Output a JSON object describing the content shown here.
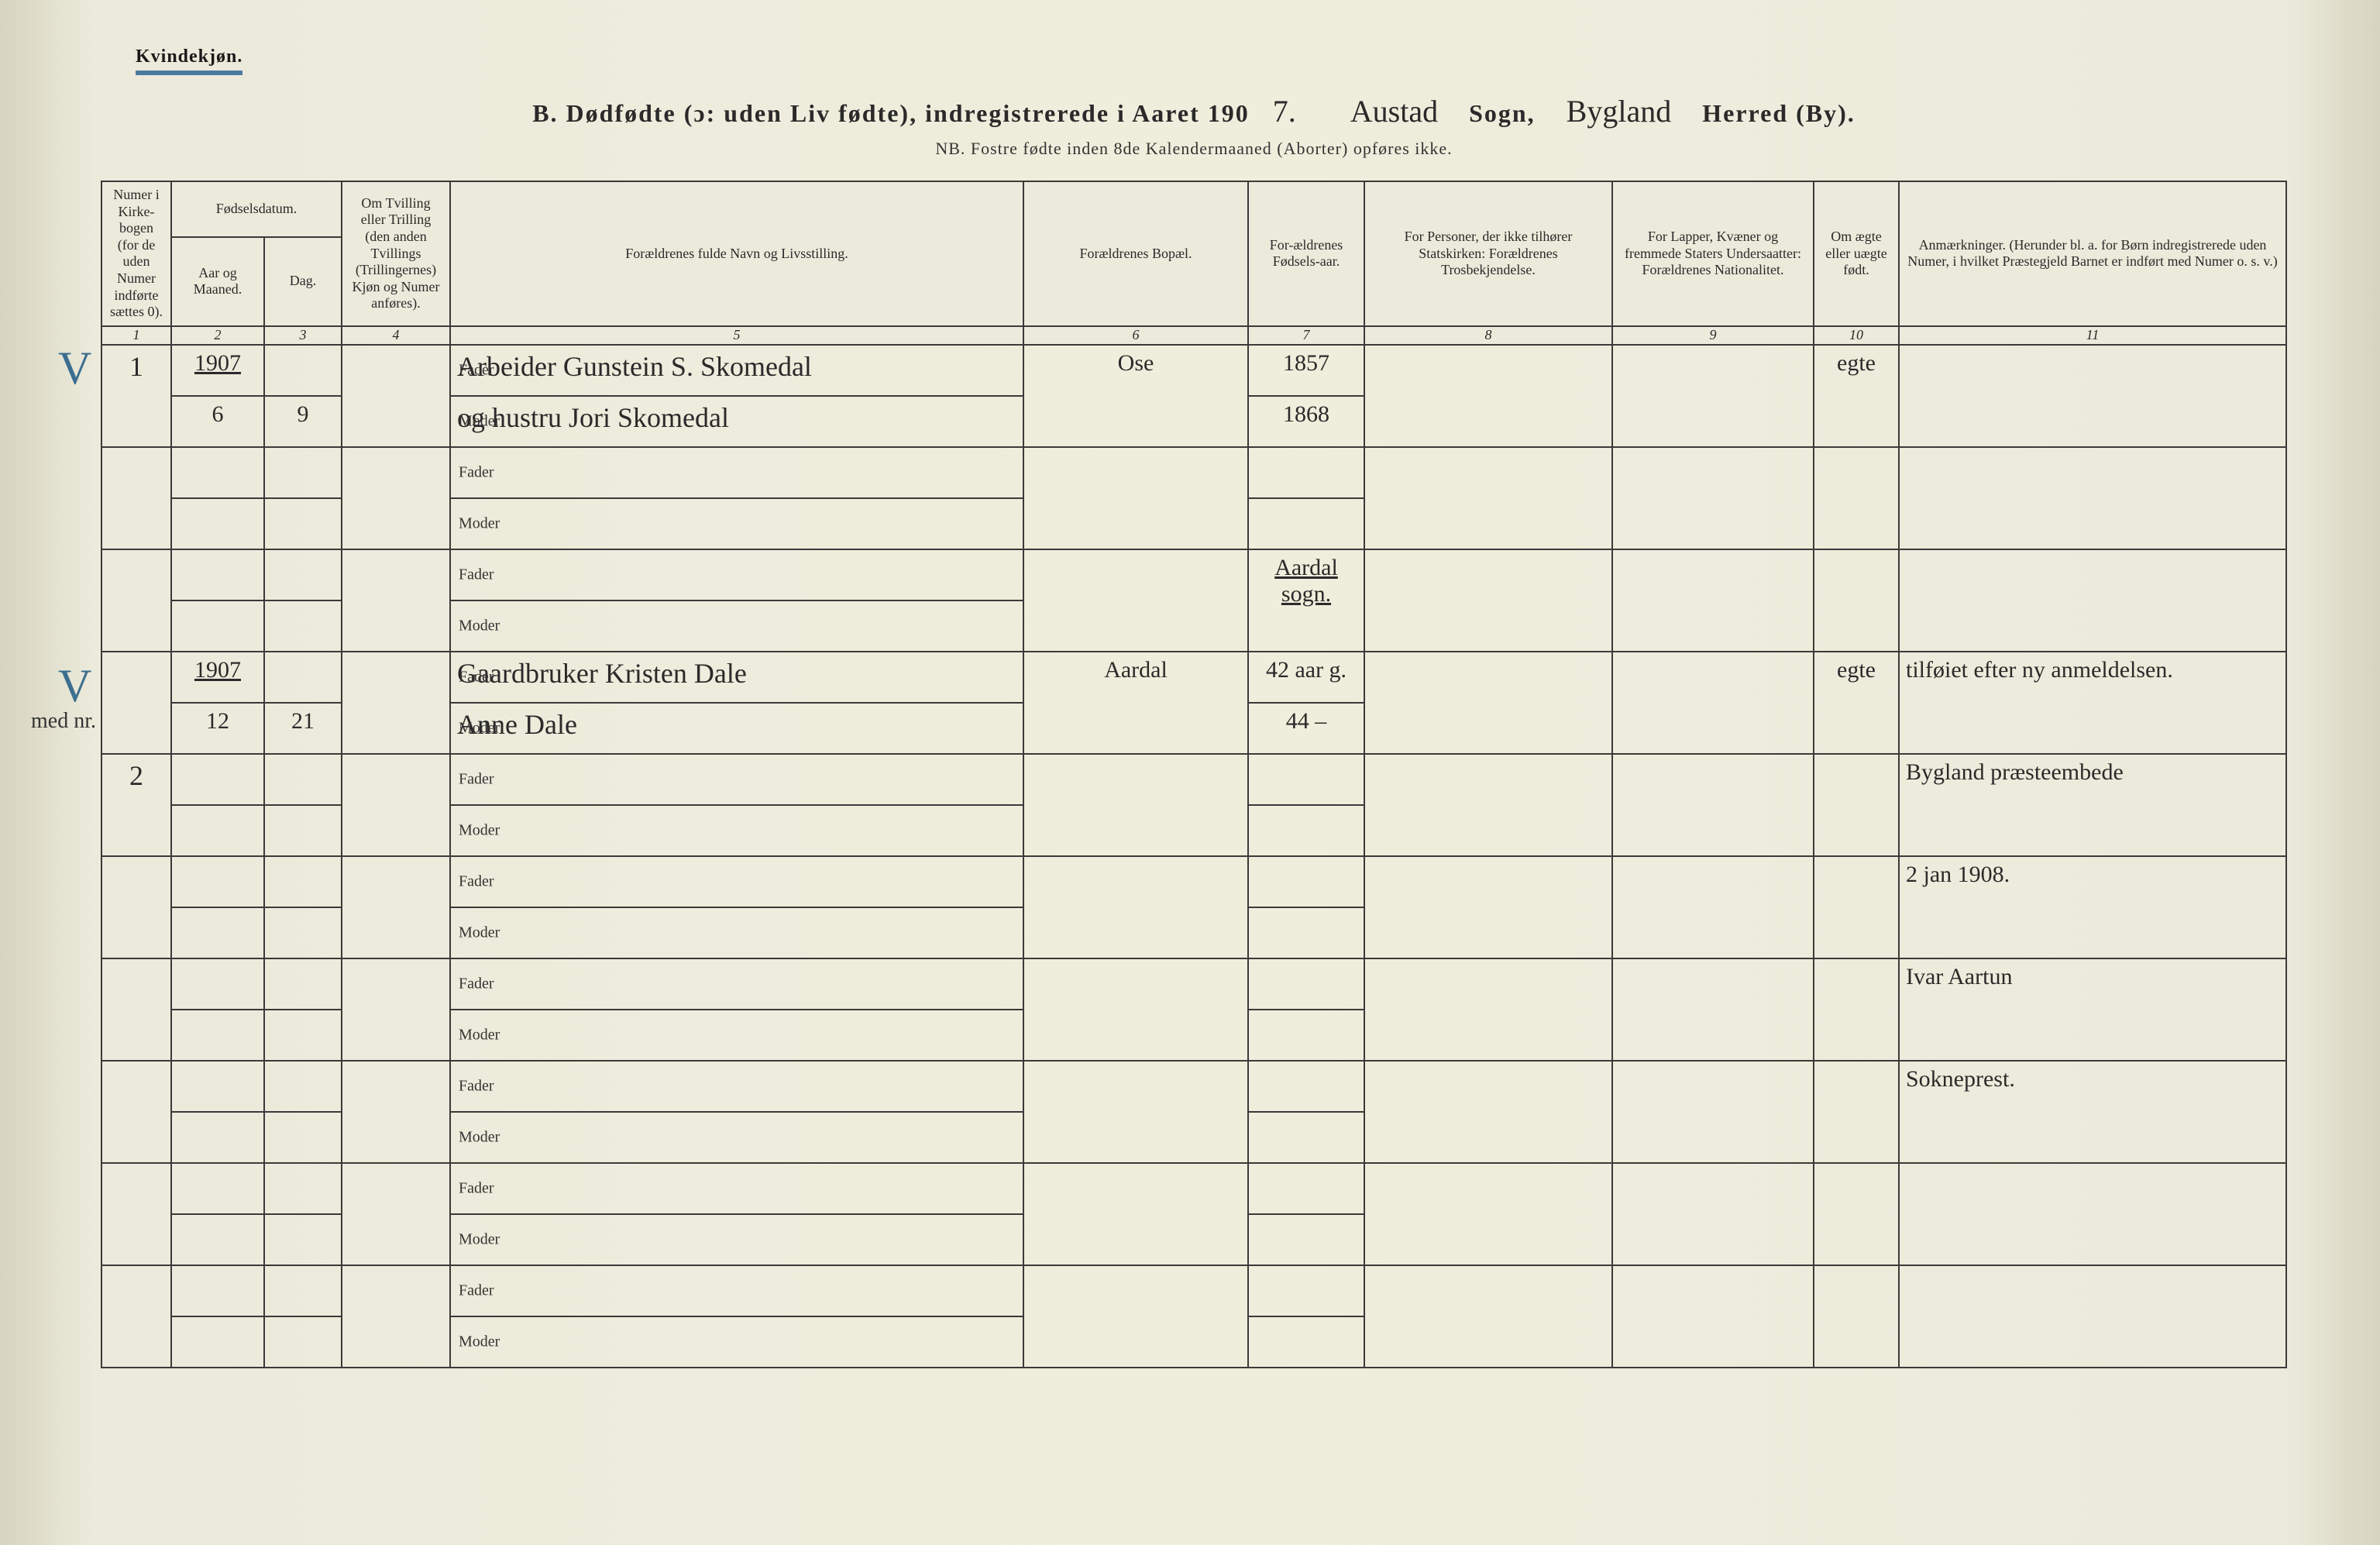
{
  "page": {
    "gender_header": "Kvindekjøn.",
    "title_prefix": "B.  Dødfødte (ɔ: uden Liv fødte), indregistrerede i Aaret 190",
    "year_digit": "7.",
    "sogn_hand": "Austad",
    "sogn_label": "Sogn,",
    "herred_hand": "Bygland",
    "herred_label": "Herred (By).",
    "nb_line": "NB.  Fostre fødte inden 8de Kalendermaaned (Aborter) opføres ikke.",
    "background": "#eceadb",
    "rule_color": "#3a3a3a",
    "script_font": "cursive"
  },
  "columns": {
    "1": "Numer i Kirke-bogen (for de uden Numer indførte sættes 0).",
    "2_top": "Fødselsdatum.",
    "2a": "Aar og Maaned.",
    "2b": "Dag.",
    "4": "Om Tvilling eller Trilling (den anden Tvillings (Trillingernes) Kjøn og Numer anføres).",
    "5": "Forældrenes fulde Navn og Livsstilling.",
    "6": "Forældrenes Bopæl.",
    "7": "For-ældrenes Fødsels-aar.",
    "8": "For Personer, der ikke tilhører Statskirken: Forældrenes Trosbekjendelse.",
    "9": "For Lapper, Kvæner og fremmede Staters Undersaatter: Forældrenes Nationalitet.",
    "10": "Om ægte eller uægte født.",
    "11": "Anmærkninger. (Herunder bl. a. for Børn indregistrerede uden Numer, i hvilket Præstegjeld Barnet er indført med Numer o. s. v.)"
  },
  "colnums": [
    "1",
    "2",
    "3",
    "4",
    "5",
    "6",
    "7",
    "8",
    "9",
    "10",
    "11"
  ],
  "parent_labels": {
    "fader": "Fader",
    "moder": "Moder"
  },
  "rows": [
    {
      "no": "1",
      "year": "1907",
      "month": "6",
      "day": "9",
      "fader": "Arbeider Gunstein S. Skomedal",
      "moder": "og hustru Jori Skomedal",
      "bopel": "Ose",
      "foraar_f": "1857",
      "foraar_m": "1868",
      "aegte": "egte",
      "margin_mark": "V"
    },
    {
      "blank": true
    },
    {
      "section_text": "Aardal sogn.",
      "section_only": true
    },
    {
      "no": "",
      "year": "1907",
      "month": "12",
      "day": "21",
      "fader": "Gaardbruker Kristen Dale",
      "moder": "Anne Dale",
      "bopel": "Aardal",
      "foraar_f": "42 aar g.",
      "foraar_m": "44 –",
      "aegte": "egte",
      "anm": "tilføiet efter ny anmeldelsen.",
      "margin_mark": "V",
      "margin_text": "med nr."
    },
    {
      "blank": true,
      "no": "2",
      "anm": "Bygland præsteembede"
    },
    {
      "blank": true,
      "anm": "2 jan 1908."
    },
    {
      "blank": true,
      "anm": "Ivar Aartun"
    },
    {
      "blank": true,
      "anm": "Sokneprest."
    },
    {
      "blank": true
    },
    {
      "blank": true
    }
  ]
}
